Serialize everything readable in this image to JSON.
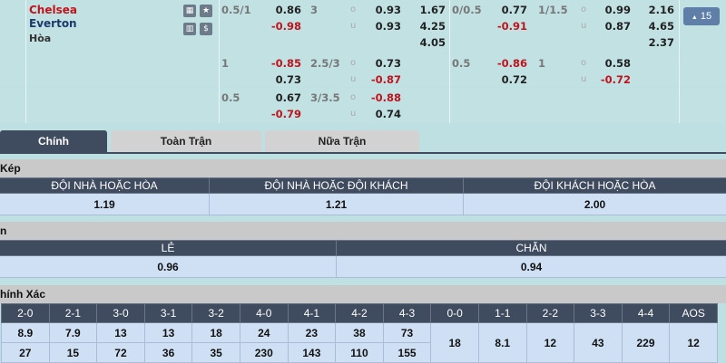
{
  "match": {
    "home": "Chelsea",
    "away": "Everton",
    "draw": "Hòa",
    "expand_label": "15",
    "colors": {
      "home": "#c0141c",
      "away": "#1a3a6b"
    }
  },
  "odds_rows": [
    {
      "hdp": "0.5/1",
      "hdp_home": "0.86",
      "hdp_away": "-0.98",
      "ou_line": "3",
      "over": "0.93",
      "under": "0.93",
      "x12": [
        "1.67",
        "4.25",
        "4.05"
      ],
      "h_hdp": "0/0.5",
      "h_hdp_home": "0.77",
      "h_hdp_away": "-0.91",
      "h_ou_line": "1/1.5",
      "h_over": "0.99",
      "h_under": "0.87",
      "h_x12": [
        "2.16",
        "4.65",
        "2.37"
      ]
    },
    {
      "hdp": "1",
      "hdp_home": "-0.85",
      "hdp_away": "0.73",
      "ou_line": "2.5/3",
      "over": "0.73",
      "under": "-0.87",
      "h_hdp": "0.5",
      "h_hdp_home": "-0.86",
      "h_hdp_away": "0.72",
      "h_ou_line": "1",
      "h_over": "0.58",
      "h_under": "-0.72"
    },
    {
      "hdp": "0.5",
      "hdp_home": "0.67",
      "hdp_away": "-0.79",
      "ou_line": "3/3.5",
      "over": "-0.88",
      "under": "0.74"
    }
  ],
  "ou_labels": {
    "o": "o",
    "u": "u"
  },
  "tabs": [
    "Chính",
    "Toàn Trận",
    "Nữa Trận"
  ],
  "double_chance": {
    "title": "Kép",
    "headers": [
      "ĐỘI NHÀ HOẶC HÒA",
      "ĐỘI NHÀ HOẶC ĐỘI KHÁCH",
      "ĐỘI KHÁCH HOẶC HÒA"
    ],
    "values": [
      "1.19",
      "1.21",
      "2.00"
    ]
  },
  "odd_even": {
    "title": "n",
    "headers": [
      "LẺ",
      "CHẴN"
    ],
    "values": [
      "0.96",
      "0.94"
    ]
  },
  "correct_score": {
    "title": "hính Xác",
    "headers": [
      "2-0",
      "2-1",
      "3-0",
      "3-1",
      "3-2",
      "4-0",
      "4-1",
      "4-2",
      "4-3",
      "0-0",
      "1-1",
      "2-2",
      "3-3",
      "4-4",
      "AOS"
    ],
    "home": [
      "8.9",
      "7.9",
      "13",
      "13",
      "18",
      "24",
      "23",
      "38",
      "73"
    ],
    "away": [
      "27",
      "15",
      "72",
      "36",
      "35",
      "230",
      "143",
      "110",
      "155"
    ],
    "draws": [
      "18",
      "8.1",
      "12",
      "43",
      "229",
      "12"
    ]
  }
}
